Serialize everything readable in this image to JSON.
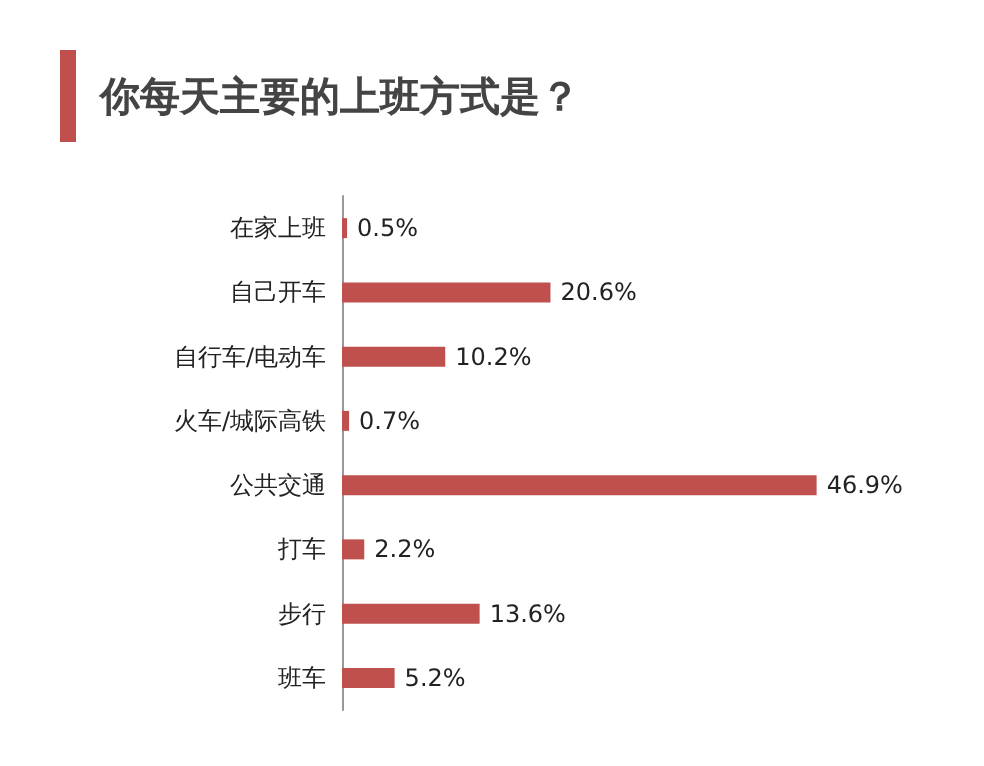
{
  "chart_data": {
    "type": "bar",
    "orientation": "horizontal",
    "title": "你每天主要的上班方式是？",
    "categories": [
      "在家上班",
      "自己开车",
      "自行车/电动车",
      "火车/城际高铁",
      "公共交通",
      "打车",
      "步行",
      "班车"
    ],
    "values": [
      0.5,
      20.6,
      10.2,
      0.7,
      46.9,
      2.2,
      13.6,
      5.2
    ],
    "value_labels": [
      "0.5%",
      "20.6%",
      "10.2%",
      "0.7%",
      "46.9%",
      "2.2%",
      "13.6%",
      "5.2%"
    ],
    "color": "#c0504d",
    "tick_labels": "y"
  }
}
